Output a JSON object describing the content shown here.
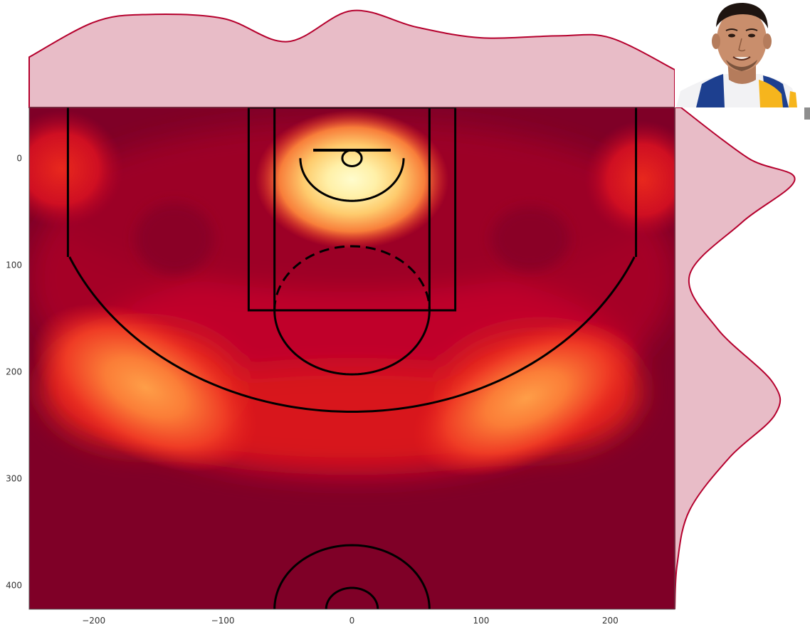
{
  "chart_data": {
    "type": "heatmap",
    "subtype": "kde-joint-plot-basketball-half-court",
    "title": "",
    "xlabel": "",
    "ylabel": "",
    "xlim": [
      -250,
      250
    ],
    "ylim": [
      422.5,
      -47.5
    ],
    "y_axis_inverted": true,
    "xticks": [
      -200,
      -100,
      0,
      100,
      200
    ],
    "yticks": [
      0,
      100,
      200,
      300,
      400
    ],
    "xtick_labels": [
      "−200",
      "−100",
      "0",
      "100",
      "200"
    ],
    "ytick_labels": [
      "0",
      "100",
      "200",
      "300",
      "400"
    ],
    "grid": false,
    "legend": "none",
    "colormap": "YlOrRd",
    "density_hotspots": [
      {
        "region": "rim",
        "x": 0,
        "y": 20,
        "relative_density": 1.0
      },
      {
        "region": "left wing three",
        "x": -160,
        "y": 215,
        "relative_density": 0.55
      },
      {
        "region": "right wing three",
        "x": 135,
        "y": 225,
        "relative_density": 0.5
      },
      {
        "region": "left corner",
        "x": -225,
        "y": 10,
        "relative_density": 0.25
      },
      {
        "region": "right corner",
        "x": 225,
        "y": 20,
        "relative_density": 0.22
      }
    ],
    "marginal_x_density": {
      "x": [
        -250,
        -200,
        -160,
        -100,
        -50,
        0,
        50,
        100,
        160,
        200,
        250
      ],
      "density": [
        0.52,
        0.88,
        0.96,
        0.92,
        0.68,
        1.0,
        0.83,
        0.72,
        0.74,
        0.72,
        0.39
      ]
    },
    "marginal_y_density": {
      "y": [
        -47.5,
        0,
        20,
        60,
        110,
        160,
        210,
        240,
        280,
        330,
        380,
        422.5
      ],
      "density": [
        0.05,
        0.6,
        0.98,
        0.55,
        0.12,
        0.35,
        0.8,
        0.82,
        0.45,
        0.12,
        0.02,
        0.0
      ]
    },
    "court_lines": {
      "hoop": {
        "x": 0,
        "y": 0,
        "radius": 7.5
      },
      "backboard_y": -7.5,
      "paint_outer_x": [
        -80,
        80
      ],
      "paint_inner_x": [
        -60,
        60
      ],
      "free_throw_y": 142.5,
      "free_throw_circle_radius": 60,
      "restricted_area_radius": 40,
      "corner_three_x": [
        -220,
        220
      ],
      "corner_three_y_end": 92.5,
      "three_point_radius": 237.5,
      "center_court_y": 422.5,
      "center_outer_radius": 60,
      "center_inner_radius": 20
    },
    "colors": {
      "marginal_fill": "#e8bcc7",
      "marginal_line": "#b5002d",
      "background": "#7f0027",
      "court_lines": "#000000"
    }
  },
  "player_photo": {
    "description": "player headshot"
  }
}
